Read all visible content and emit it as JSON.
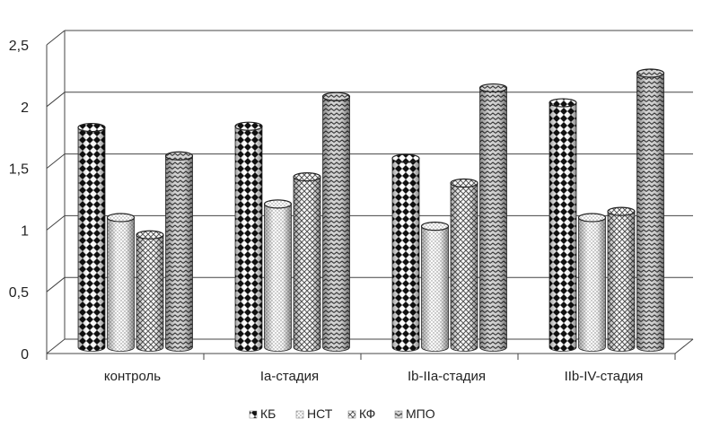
{
  "chart_data": {
    "type": "bar",
    "style": "3d-cylinder",
    "categories": [
      "контроль",
      "Ia-стадия",
      "Ib-IIa-стадия",
      "IIb-IV-стадия"
    ],
    "series": [
      {
        "name": "КБ",
        "values": [
          1.78,
          1.79,
          1.53,
          1.98
        ]
      },
      {
        "name": "НСТ",
        "values": [
          1.05,
          1.16,
          0.98,
          1.05
        ]
      },
      {
        "name": "КФ",
        "values": [
          0.91,
          1.38,
          1.33,
          1.1
        ]
      },
      {
        "name": "МПО",
        "values": [
          1.55,
          2.03,
          2.1,
          2.22
        ]
      }
    ],
    "yticks": [
      "0",
      "0,5",
      "1",
      "1,5",
      "2",
      "2,5"
    ],
    "ylim": [
      0,
      2.5
    ],
    "grid": true,
    "legend_position": "bottom"
  }
}
